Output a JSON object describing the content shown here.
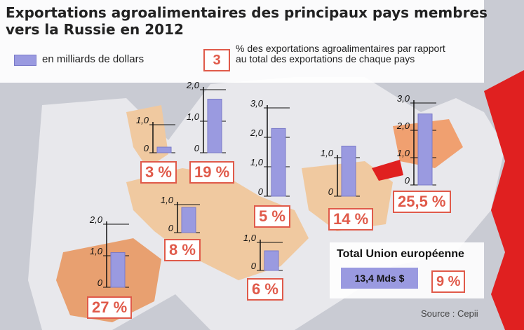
{
  "title": "Exportations agroalimentaires des principaux pays membres vers la Russie en 2012",
  "legend": {
    "bar_label": "en milliards de dollars",
    "pct_example": "3",
    "pct_label": "% des exportations agroalimentaires par rapport au total des exportations de chaque pays"
  },
  "total": {
    "label": "Total Union européenne",
    "value": "13,4 Mds $",
    "pct": "9 %"
  },
  "source": "Source : Cepii",
  "colors": {
    "bar": "#9a9ae0",
    "accent": "#e05a4a",
    "land_eu": "#f0c9a0",
    "russia": "#e02020"
  },
  "chart_data": {
    "type": "bar",
    "unit": "milliards de dollars",
    "points": [
      {
        "value": 0.2,
        "pct": "3 %",
        "ticks": [
          "1,0",
          "0"
        ]
      },
      {
        "value": 1.7,
        "pct": "19 %",
        "ticks": [
          "2,0",
          "1,0",
          "0"
        ]
      },
      {
        "value": 2.3,
        "pct": "5 %",
        "ticks": [
          "3,0",
          "2,0",
          "1,0",
          "0"
        ]
      },
      {
        "value": 1.3,
        "pct": "14 %",
        "ticks": [
          "1,0",
          "0"
        ]
      },
      {
        "value": 2.6,
        "pct": "25,5 %",
        "ticks": [
          "3,0",
          "2,0",
          "1,0",
          "0"
        ]
      },
      {
        "value": 0.9,
        "pct": "8 %",
        "ticks": [
          "1,0",
          "0"
        ]
      },
      {
        "value": 1.1,
        "pct": "27 %",
        "ticks": [
          "2,0",
          "1,0",
          "0"
        ]
      },
      {
        "value": 0.7,
        "pct": "6 %",
        "ticks": [
          "1,0",
          "0"
        ]
      }
    ]
  }
}
